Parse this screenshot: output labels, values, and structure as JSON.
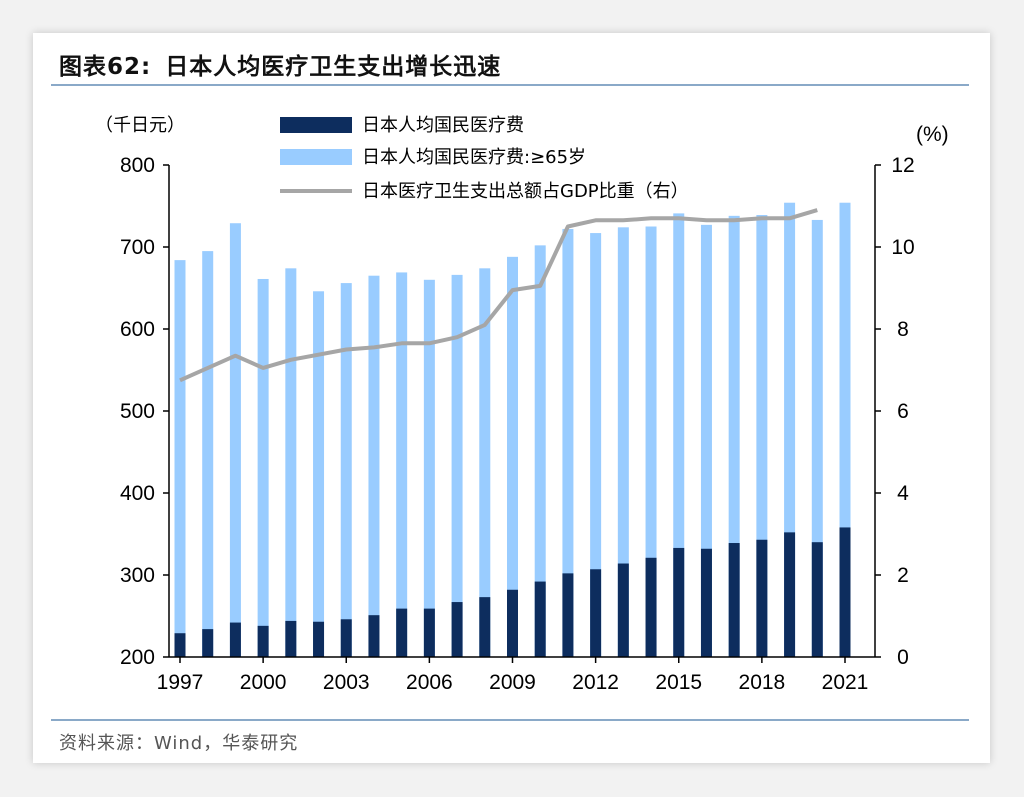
{
  "figure": {
    "label": "图表62:",
    "title": "日本人均医疗卫生支出增长迅速",
    "source": "资料来源：Wind，华泰研究"
  },
  "colors": {
    "bar_total": "#0d2d5e",
    "bar_65": "#99ccff",
    "line": "#a6a6a6",
    "rule": "#8aa9c8"
  },
  "chart_data": {
    "type": "bar",
    "title": "",
    "left_axis_unit": "（千日元）",
    "right_axis_unit": "(%)",
    "ylim_left": [
      200,
      800
    ],
    "ylim_right": [
      0,
      12
    ],
    "yticks_left": [
      200,
      300,
      400,
      500,
      600,
      700,
      800
    ],
    "yticks_right": [
      0,
      2,
      4,
      6,
      8,
      10,
      12
    ],
    "x": [
      1997,
      1998,
      1999,
      2000,
      2001,
      2002,
      2003,
      2004,
      2005,
      2006,
      2007,
      2008,
      2009,
      2010,
      2011,
      2012,
      2013,
      2014,
      2015,
      2016,
      2017,
      2018,
      2019,
      2020,
      2021
    ],
    "xtick_labels": [
      "1997",
      "2000",
      "2003",
      "2006",
      "2009",
      "2012",
      "2015",
      "2018",
      "2021"
    ],
    "grid": false,
    "legend_placement": "top",
    "series": [
      {
        "name": "日本人均国民医疗费",
        "type": "bar",
        "axis": "left",
        "values": [
          229,
          234,
          242,
          238,
          244,
          243,
          246,
          251,
          259,
          259,
          267,
          273,
          282,
          292,
          302,
          307,
          314,
          321,
          333,
          332,
          339,
          343,
          352,
          340,
          358
        ]
      },
      {
        "name": "日本人均国民医疗费:≥65岁",
        "type": "bar",
        "axis": "left",
        "values": [
          684,
          695,
          729,
          661,
          674,
          646,
          656,
          665,
          669,
          660,
          666,
          674,
          688,
          702,
          722,
          717,
          724,
          725,
          741,
          727,
          738,
          739,
          754,
          733,
          754
        ]
      },
      {
        "name": "日本医疗卫生支出总额占GDP比重（右）",
        "type": "line",
        "axis": "right",
        "values": [
          6.75,
          null,
          7.35,
          7.05,
          7.25,
          null,
          7.5,
          7.55,
          7.65,
          7.65,
          7.8,
          8.1,
          8.95,
          9.05,
          10.5,
          10.65,
          10.65,
          10.7,
          10.7,
          10.65,
          10.65,
          10.7,
          10.7,
          10.9,
          null
        ]
      }
    ]
  }
}
